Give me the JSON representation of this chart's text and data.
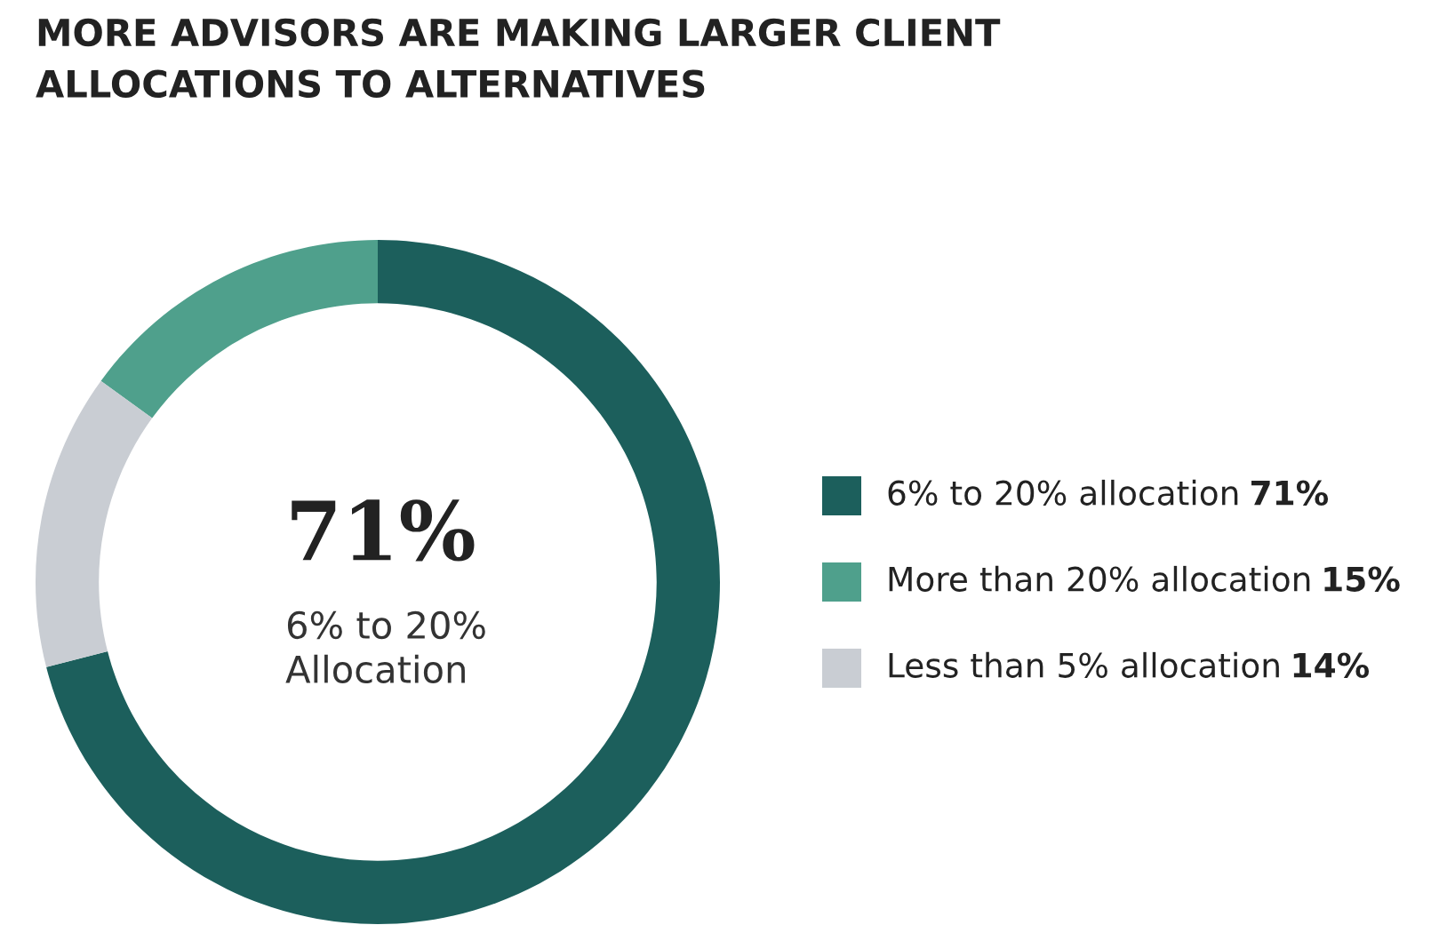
{
  "chart_data": {
    "type": "donut",
    "title": "MORE ADVISORS ARE MAKING LARGER CLIENT\nALLOCATIONS TO ALTERNATIVES",
    "categories": [
      "6% to 20% allocation",
      "More than 20% allocation",
      "Less than 5% allocation"
    ],
    "values": [
      71,
      15,
      14
    ],
    "colors": [
      "#1c5f5c",
      "#4fa08c",
      "#c9cdd3"
    ],
    "value_labels": [
      "71%",
      "15%",
      "14%"
    ],
    "annotations": [
      "71%",
      "6% to 20%\nAllocation"
    ],
    "legend": "right"
  }
}
